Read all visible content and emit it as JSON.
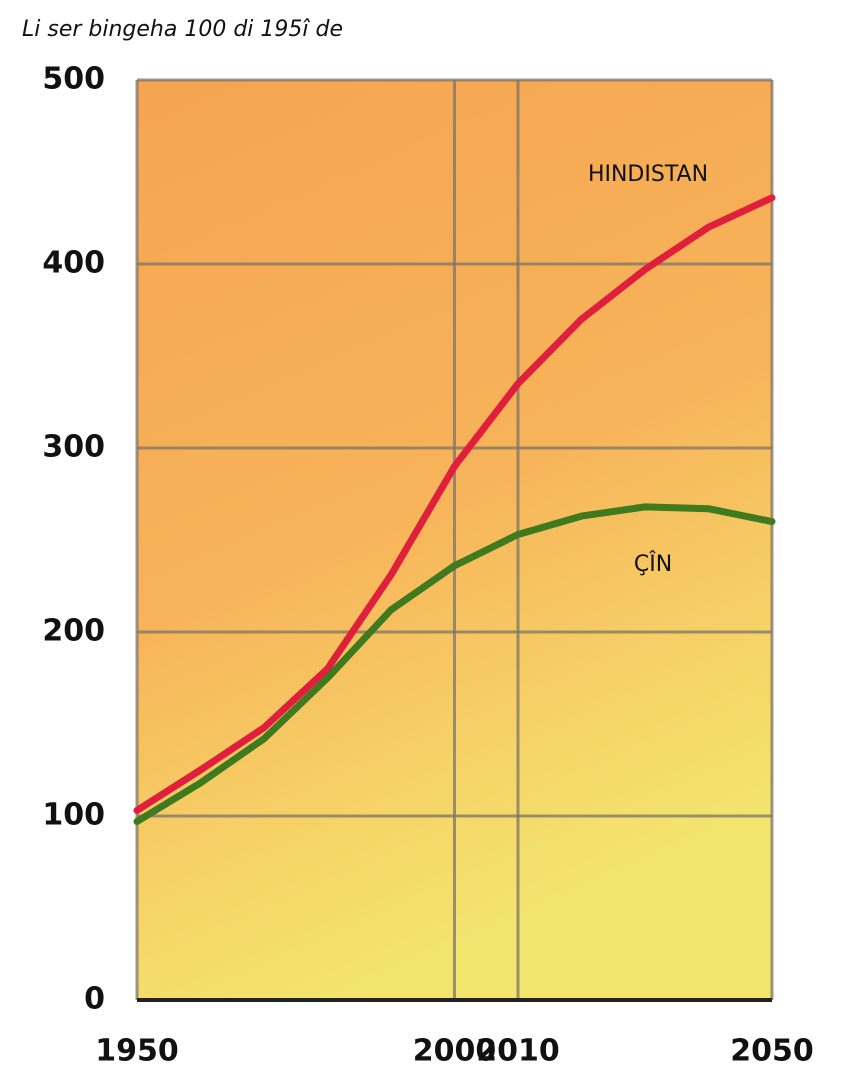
{
  "chart_data": {
    "type": "line",
    "title": "Li ser bingeha 100 di 195î de",
    "x": [
      1950,
      1960,
      1970,
      1980,
      1990,
      2000,
      2010,
      2020,
      2030,
      2040,
      2050
    ],
    "series": [
      {
        "name": "HINDISTAN",
        "color": "#e01f3d",
        "values": [
          103,
          125,
          148,
          180,
          231,
          290,
          335,
          370,
          397,
          420,
          436
        ]
      },
      {
        "name": "ÇÎN",
        "color": "#3f7a1f",
        "values": [
          97,
          118,
          142,
          175,
          212,
          236,
          253,
          263,
          268,
          267,
          260
        ]
      }
    ],
    "xlim": [
      1950,
      2050
    ],
    "xticks": [
      1950,
      2000,
      2010,
      2050
    ],
    "ylim": [
      0,
      500
    ],
    "yticks": [
      0,
      100,
      200,
      300,
      400,
      500
    ],
    "grid": true
  }
}
